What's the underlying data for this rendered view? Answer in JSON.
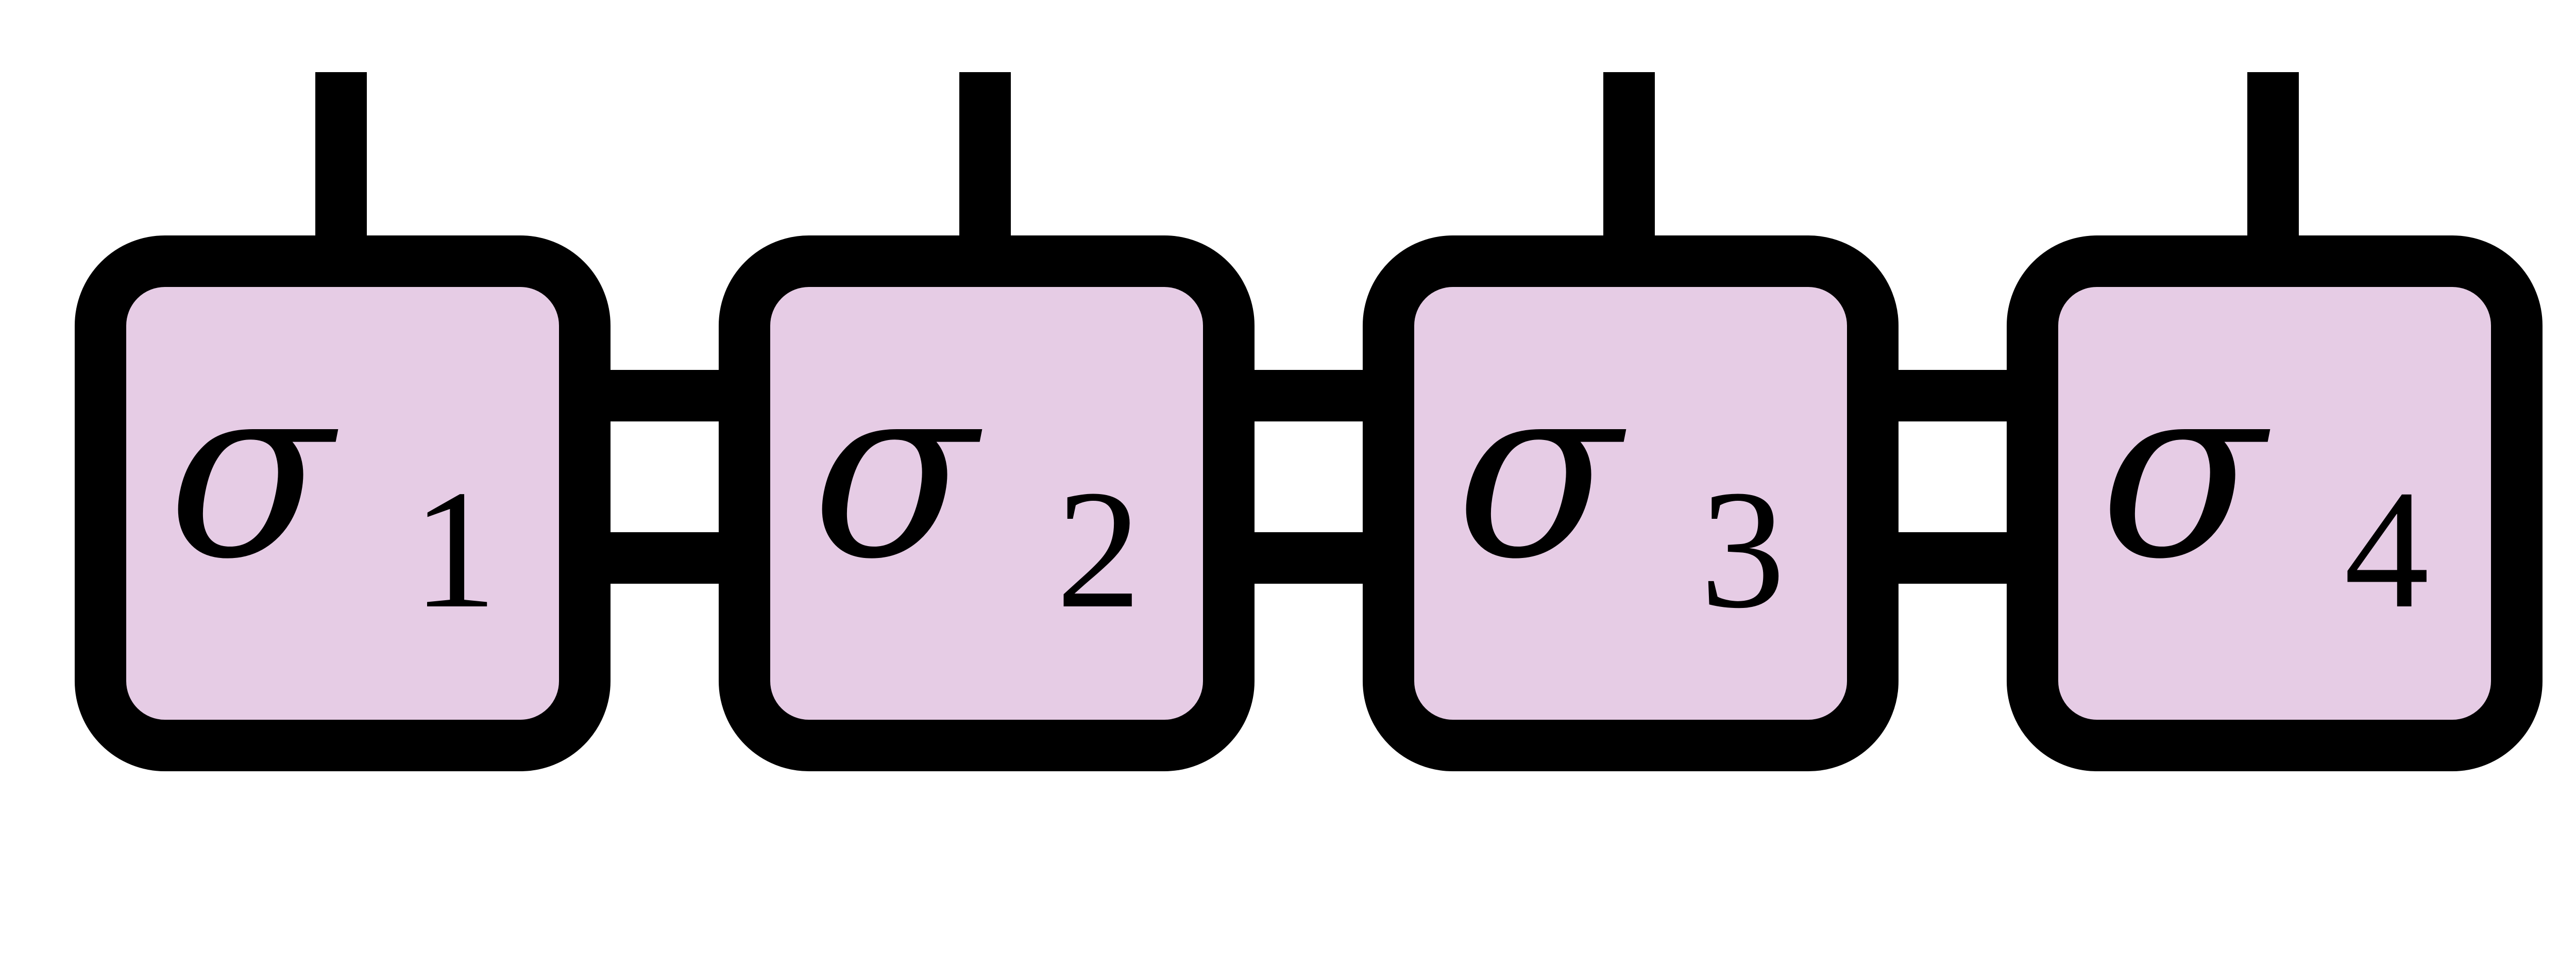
{
  "diagram": {
    "type": "tensor-network-chain",
    "colors": {
      "node_fill": "#e6cce5",
      "stroke": "#000000",
      "background": "#ffffff"
    },
    "nodes": [
      {
        "symbol": "σ",
        "subscript": "1"
      },
      {
        "symbol": "σ",
        "subscript": "2"
      },
      {
        "symbol": "σ",
        "subscript": "3"
      },
      {
        "symbol": "σ",
        "subscript": "4"
      }
    ],
    "bonds_between_neighbors": 2,
    "open_legs_per_node": 1
  }
}
